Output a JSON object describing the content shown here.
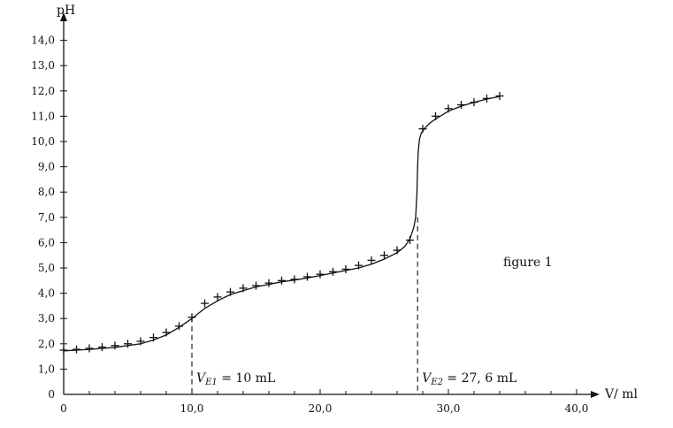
{
  "chart_data": {
    "type": "line",
    "title": "",
    "xlabel": "V/ ml",
    "ylabel": "pH",
    "xlim": [
      0,
      42
    ],
    "ylim": [
      0,
      14.8
    ],
    "x_ticks": [
      0,
      10,
      20,
      30,
      40
    ],
    "x_tick_labels": [
      "0",
      "10,0",
      "20,0",
      "30,0",
      "40,0"
    ],
    "y_ticks": [
      0,
      1,
      2,
      3,
      4,
      5,
      6,
      7,
      8,
      9,
      10,
      11,
      12,
      13,
      14
    ],
    "y_tick_labels": [
      "0",
      "1,0",
      "2,0",
      "3,0",
      "4,0",
      "5,0",
      "6,0",
      "7,0",
      "8,0",
      "9,0",
      "10,0",
      "11,0",
      "12,0",
      "13,0",
      "14,0"
    ],
    "grid": false,
    "series": [
      {
        "type": "scatter",
        "marker": "+",
        "x": [
          0,
          1,
          2,
          3,
          4,
          5,
          6,
          7,
          8,
          9,
          10,
          11,
          12,
          13,
          14,
          15,
          16,
          17,
          18,
          19,
          20,
          21,
          22,
          23,
          24,
          25,
          26,
          27,
          28,
          29,
          30,
          31,
          32,
          33,
          34
        ],
        "y": [
          1.75,
          1.78,
          1.82,
          1.87,
          1.93,
          2.0,
          2.1,
          2.25,
          2.45,
          2.7,
          3.05,
          3.6,
          3.85,
          4.05,
          4.2,
          4.3,
          4.4,
          4.5,
          4.55,
          4.65,
          4.75,
          4.85,
          4.95,
          5.1,
          5.3,
          5.5,
          5.7,
          6.1,
          10.5,
          11.0,
          11.3,
          11.45,
          11.55,
          11.7,
          11.8
        ]
      },
      {
        "type": "line",
        "x": [
          0,
          2,
          4,
          6,
          7,
          8,
          9,
          10,
          11,
          12,
          13,
          14,
          15,
          16,
          17,
          18,
          19,
          20,
          21,
          22,
          23,
          24,
          25,
          26,
          26.6,
          27.0,
          27.3,
          27.45,
          27.55,
          27.6,
          27.65,
          27.75,
          27.9,
          28.2,
          28.6,
          29.2,
          30,
          31,
          32,
          33,
          34
        ],
        "y": [
          1.72,
          1.78,
          1.86,
          2.0,
          2.15,
          2.35,
          2.65,
          3.0,
          3.4,
          3.7,
          3.95,
          4.1,
          4.25,
          4.35,
          4.45,
          4.52,
          4.6,
          4.7,
          4.8,
          4.9,
          5.0,
          5.15,
          5.35,
          5.6,
          5.85,
          6.15,
          6.6,
          7.0,
          8.0,
          9.0,
          9.6,
          10.1,
          10.35,
          10.55,
          10.75,
          10.95,
          11.2,
          11.4,
          11.55,
          11.68,
          11.78
        ]
      }
    ],
    "equivalence_points": [
      {
        "x": 10,
        "y": 3.05,
        "label_var": "V",
        "label_sub": "E1",
        "label_rest": " = 10 mL"
      },
      {
        "x": 27.6,
        "y": 7.0,
        "label_var": "V",
        "label_sub": "E2",
        "label_rest": " = 27, 6 mL"
      }
    ],
    "annotation": "figure 1"
  }
}
